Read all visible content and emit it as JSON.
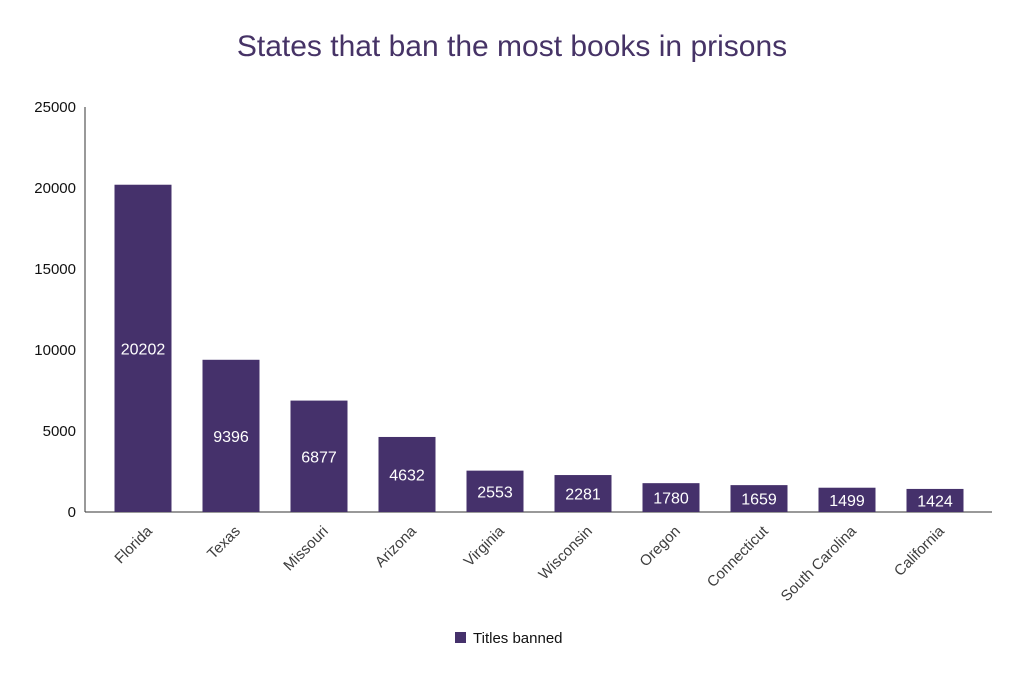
{
  "chart_data": {
    "type": "bar",
    "title": "States that ban the most books in prisons",
    "xlabel": "",
    "ylabel": "",
    "categories": [
      "Florida",
      "Texas",
      "Missouri",
      "Arizona",
      "Virginia",
      "Wisconsin",
      "Oregon",
      "Connecticut",
      "South Carolina",
      "California"
    ],
    "series": [
      {
        "name": "Titles banned",
        "values": [
          20202,
          9396,
          6877,
          4632,
          2553,
          2281,
          1780,
          1659,
          1499,
          1424
        ]
      }
    ],
    "data_labels": [
      "20202",
      "9396",
      "6877",
      "4632",
      "2553",
      "2281",
      "1780",
      "1659",
      "1499",
      "1424"
    ],
    "ylim": [
      0,
      25000
    ],
    "yticks": [
      "0",
      "5000",
      "10000",
      "15000",
      "20000",
      "25000"
    ],
    "grid": false,
    "legend_position": "bottom",
    "bar_color": "#45316b",
    "label_color": "#ffffff",
    "title_color": "#463366"
  }
}
